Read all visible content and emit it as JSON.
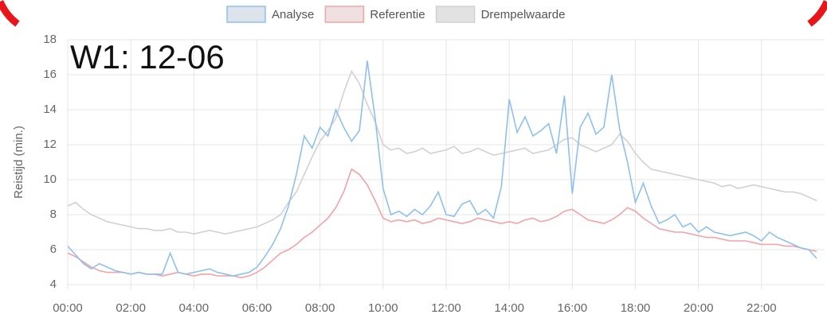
{
  "chart_data": {
    "type": "line",
    "annotation": "W1: 12-06",
    "y_label": "Reistijd (min.)",
    "legend": "top",
    "grid": true,
    "xlim": [
      0,
      24
    ],
    "xticks": [
      {
        "value": 0,
        "label": "00:00"
      },
      {
        "value": 2,
        "label": "02:00"
      },
      {
        "value": 4,
        "label": "04:00"
      },
      {
        "value": 6,
        "label": "06:00"
      },
      {
        "value": 8,
        "label": "08:00"
      },
      {
        "value": 10,
        "label": "10:00"
      },
      {
        "value": 12,
        "label": "12:00"
      },
      {
        "value": 14,
        "label": "14:00"
      },
      {
        "value": 16,
        "label": "16:00"
      },
      {
        "value": 18,
        "label": "18:00"
      },
      {
        "value": 20,
        "label": "20:00"
      },
      {
        "value": 22,
        "label": "22:00"
      }
    ],
    "ylim": [
      4,
      18
    ],
    "yticks": [
      4,
      6,
      8,
      10,
      12,
      14,
      16,
      18
    ],
    "x": [
      0,
      0.25,
      0.5,
      0.75,
      1,
      1.25,
      1.5,
      1.75,
      2,
      2.25,
      2.5,
      2.75,
      3,
      3.25,
      3.5,
      3.75,
      4,
      4.25,
      4.5,
      4.75,
      5,
      5.25,
      5.5,
      5.75,
      6,
      6.25,
      6.5,
      6.75,
      7,
      7.25,
      7.5,
      7.75,
      8,
      8.25,
      8.5,
      8.75,
      9,
      9.25,
      9.5,
      9.75,
      10,
      10.25,
      10.5,
      10.75,
      11,
      11.25,
      11.5,
      11.75,
      12,
      12.25,
      12.5,
      12.75,
      13,
      13.25,
      13.5,
      13.75,
      14,
      14.25,
      14.5,
      14.75,
      15,
      15.25,
      15.5,
      15.75,
      16,
      16.25,
      16.5,
      16.75,
      17,
      17.25,
      17.5,
      17.75,
      18,
      18.25,
      18.5,
      18.75,
      19,
      19.25,
      19.5,
      19.75,
      20,
      20.25,
      20.5,
      20.75,
      21,
      21.25,
      21.5,
      21.75,
      22,
      22.25,
      22.5,
      22.75,
      23,
      23.25,
      23.5,
      23.75
    ],
    "series": [
      {
        "name": "Analyse",
        "color": "#8ec0ef",
        "fill": "#dde3ea",
        "values": [
          6.2,
          5.7,
          5.2,
          4.9,
          5.2,
          5.0,
          4.8,
          4.7,
          4.6,
          4.7,
          4.6,
          4.6,
          4.6,
          5.8,
          4.7,
          4.6,
          4.7,
          4.8,
          4.9,
          4.7,
          4.6,
          4.5,
          4.6,
          4.7,
          5.0,
          5.6,
          6.3,
          7.2,
          8.5,
          10.3,
          12.5,
          11.8,
          13.0,
          12.5,
          14.0,
          13.0,
          12.2,
          12.8,
          16.8,
          13.5,
          9.5,
          8.0,
          8.2,
          7.9,
          8.3,
          8.0,
          8.5,
          9.3,
          8.0,
          7.9,
          8.6,
          8.8,
          8.0,
          8.3,
          7.8,
          9.6,
          14.6,
          12.7,
          13.6,
          12.5,
          12.8,
          13.2,
          11.5,
          14.8,
          9.2,
          13.0,
          13.8,
          12.6,
          13.0,
          16.0,
          12.9,
          11.0,
          8.7,
          9.8,
          8.5,
          7.5,
          7.7,
          8.0,
          7.3,
          7.5,
          7.0,
          7.3,
          7.0,
          6.9,
          6.8,
          6.9,
          7.0,
          6.8,
          6.5,
          7.0,
          6.7,
          6.5,
          6.3,
          6.1,
          6.0,
          5.5
        ]
      },
      {
        "name": "Referentie",
        "color": "#f2a3a8",
        "fill": "#eedfe1",
        "values": [
          5.8,
          5.6,
          5.3,
          5.0,
          4.8,
          4.7,
          4.7,
          4.7,
          4.6,
          4.7,
          4.6,
          4.6,
          4.5,
          4.6,
          4.7,
          4.6,
          4.5,
          4.6,
          4.6,
          4.5,
          4.5,
          4.5,
          4.4,
          4.5,
          4.7,
          5.0,
          5.4,
          5.8,
          6.0,
          6.3,
          6.7,
          7.0,
          7.4,
          7.8,
          8.4,
          9.3,
          10.6,
          10.3,
          9.7,
          8.8,
          7.8,
          7.6,
          7.7,
          7.6,
          7.7,
          7.5,
          7.6,
          7.8,
          7.7,
          7.6,
          7.5,
          7.6,
          7.8,
          7.7,
          7.6,
          7.5,
          7.6,
          7.5,
          7.7,
          7.8,
          7.6,
          7.7,
          7.9,
          8.2,
          8.3,
          8.0,
          7.7,
          7.6,
          7.5,
          7.7,
          8.0,
          8.4,
          8.2,
          7.8,
          7.5,
          7.2,
          7.1,
          7.0,
          7.0,
          6.9,
          6.8,
          6.7,
          6.7,
          6.6,
          6.5,
          6.5,
          6.5,
          6.4,
          6.3,
          6.3,
          6.3,
          6.2,
          6.2,
          6.1,
          6.0,
          5.9
        ]
      },
      {
        "name": "Drempelwaarde",
        "color": "#d3d0d3",
        "fill": "#e2e2e2",
        "values": [
          8.5,
          8.7,
          8.3,
          8.0,
          7.8,
          7.6,
          7.5,
          7.4,
          7.3,
          7.2,
          7.2,
          7.1,
          7.1,
          7.2,
          7.0,
          7.0,
          6.9,
          7.0,
          7.1,
          7.0,
          6.9,
          7.0,
          7.1,
          7.2,
          7.3,
          7.5,
          7.7,
          8.0,
          8.7,
          9.3,
          10.3,
          11.3,
          12.2,
          12.8,
          13.5,
          15.0,
          16.2,
          15.5,
          14.3,
          13.3,
          12.0,
          11.7,
          11.8,
          11.5,
          11.6,
          11.8,
          11.5,
          11.6,
          11.7,
          11.9,
          11.5,
          11.6,
          11.8,
          11.6,
          11.4,
          11.5,
          11.6,
          11.7,
          11.8,
          11.5,
          11.6,
          11.7,
          12.0,
          12.3,
          12.4,
          12.0,
          11.8,
          11.6,
          11.8,
          12.0,
          12.6,
          12.2,
          11.5,
          11.0,
          10.6,
          10.5,
          10.4,
          10.3,
          10.2,
          10.1,
          10.0,
          9.9,
          9.8,
          9.6,
          9.7,
          9.5,
          9.6,
          9.7,
          9.6,
          9.5,
          9.4,
          9.3,
          9.3,
          9.2,
          9.0,
          8.8
        ]
      }
    ]
  }
}
